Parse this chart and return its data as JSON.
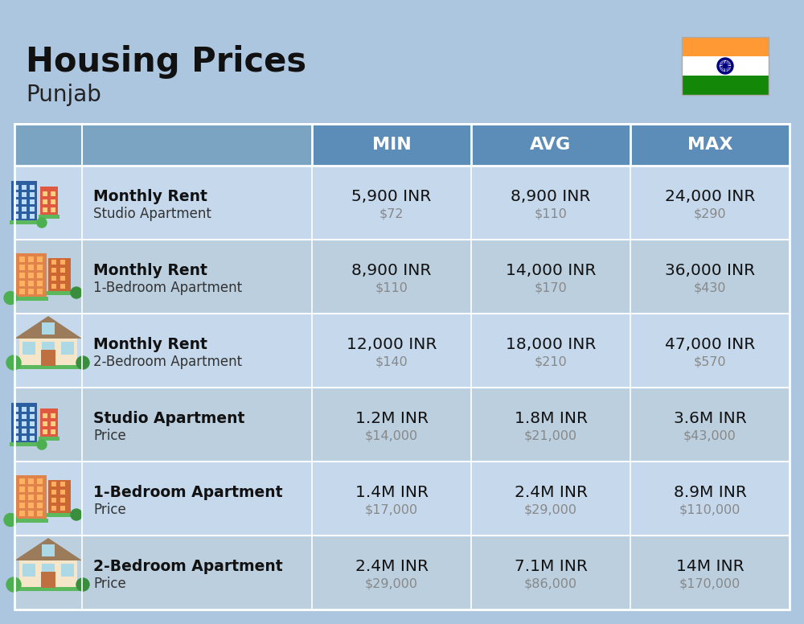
{
  "title": "Housing Prices",
  "subtitle": "Punjab",
  "bg_color": "#ADC6E0",
  "header_bg": "#5B8DB8",
  "header_light_bg": "#7BA3C2",
  "row_bg_even": "#C5D8EC",
  "row_bg_odd": "#BBCFDF",
  "divider_color": "#FFFFFF",
  "col_headers": [
    "MIN",
    "AVG",
    "MAX"
  ],
  "rows": [
    {
      "label_bold": "Monthly Rent",
      "label_sub": "Studio Apartment",
      "min_inr": "5,900 INR",
      "min_usd": "$72",
      "avg_inr": "8,900 INR",
      "avg_usd": "$110",
      "max_inr": "24,000 INR",
      "max_usd": "$290",
      "icon_type": "blue_red"
    },
    {
      "label_bold": "Monthly Rent",
      "label_sub": "1-Bedroom Apartment",
      "min_inr": "8,900 INR",
      "min_usd": "$110",
      "avg_inr": "14,000 INR",
      "avg_usd": "$170",
      "max_inr": "36,000 INR",
      "max_usd": "$430",
      "icon_type": "orange_tall"
    },
    {
      "label_bold": "Monthly Rent",
      "label_sub": "2-Bedroom Apartment",
      "min_inr": "12,000 INR",
      "min_usd": "$140",
      "avg_inr": "18,000 INR",
      "avg_usd": "$210",
      "max_inr": "47,000 INR",
      "max_usd": "$570",
      "icon_type": "house_beige"
    },
    {
      "label_bold": "Studio Apartment",
      "label_sub": "Price",
      "min_inr": "1.2M INR",
      "min_usd": "$14,000",
      "avg_inr": "1.8M INR",
      "avg_usd": "$21,000",
      "max_inr": "3.6M INR",
      "max_usd": "$43,000",
      "icon_type": "blue_red"
    },
    {
      "label_bold": "1-Bedroom Apartment",
      "label_sub": "Price",
      "min_inr": "1.4M INR",
      "min_usd": "$17,000",
      "avg_inr": "2.4M INR",
      "avg_usd": "$29,000",
      "max_inr": "8.9M INR",
      "max_usd": "$110,000",
      "icon_type": "orange_tall"
    },
    {
      "label_bold": "2-Bedroom Apartment",
      "label_sub": "Price",
      "min_inr": "2.4M INR",
      "min_usd": "$29,000",
      "avg_inr": "7.1M INR",
      "avg_usd": "$86,000",
      "max_inr": "14M INR",
      "max_usd": "$170,000",
      "icon_type": "house_beige"
    }
  ]
}
